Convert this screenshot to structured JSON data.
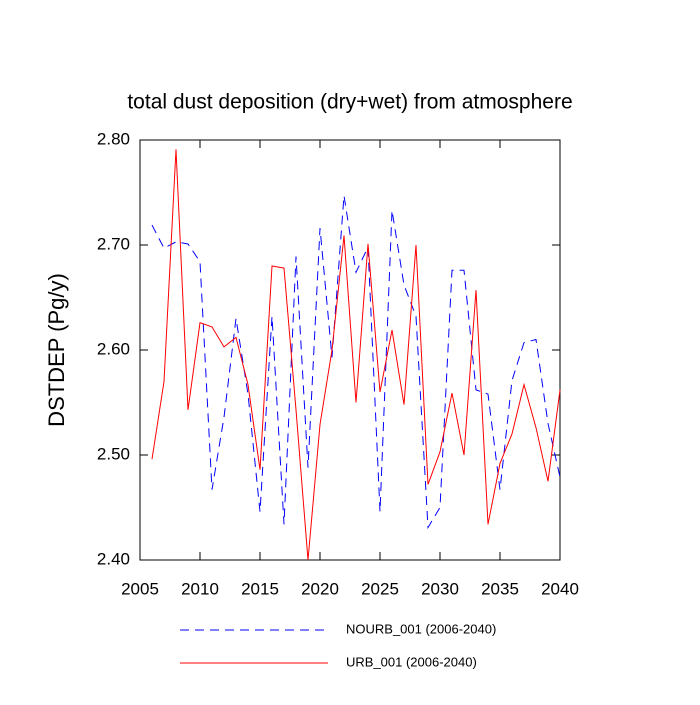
{
  "chart_data": {
    "type": "line",
    "title": "total dust deposition (dry+wet) from atmosphere",
    "y_label": "DSTDEP  (Pg/y)",
    "x": [
      2006,
      2007,
      2008,
      2009,
      2010,
      2011,
      2012,
      2013,
      2014,
      2015,
      2016,
      2017,
      2018,
      2019,
      2020,
      2021,
      2022,
      2023,
      2024,
      2025,
      2026,
      2027,
      2028,
      2029,
      2030,
      2031,
      2032,
      2033,
      2034,
      2035,
      2036,
      2037,
      2038,
      2039,
      2040
    ],
    "series": [
      {
        "name": "NOURB_001 (2006-2040)",
        "color": "#0000ff",
        "dashed": true,
        "values": [
          2.719,
          2.697,
          2.703,
          2.701,
          2.684,
          2.467,
          2.536,
          2.63,
          2.558,
          2.446,
          2.632,
          2.434,
          2.689,
          2.488,
          2.716,
          2.593,
          2.747,
          2.674,
          2.698,
          2.446,
          2.733,
          2.662,
          2.632,
          2.431,
          2.45,
          2.676,
          2.676,
          2.562,
          2.558,
          2.467,
          2.571,
          2.607,
          2.61,
          2.53,
          2.479
        ]
      },
      {
        "name": "URB_001 (2006-2040)",
        "color": "#ff0000",
        "dashed": false,
        "values": [
          2.496,
          2.57,
          2.791,
          2.543,
          2.626,
          2.622,
          2.603,
          2.612,
          2.567,
          2.486,
          2.68,
          2.678,
          2.543,
          2.4,
          2.529,
          2.6,
          2.709,
          2.55,
          2.701,
          2.56,
          2.619,
          2.548,
          2.7,
          2.472,
          2.503,
          2.559,
          2.5,
          2.657,
          2.434,
          2.492,
          2.52,
          2.567,
          2.526,
          2.475,
          2.562
        ]
      }
    ],
    "xlim": [
      2005,
      2040
    ],
    "xticks": [
      2005,
      2010,
      2015,
      2020,
      2025,
      2030,
      2035,
      2040
    ],
    "ylim": [
      2.4,
      2.8
    ],
    "yticks": [
      {
        "value": 2.4,
        "label": "2.40"
      },
      {
        "value": 2.5,
        "label": "2.50"
      },
      {
        "value": 2.6,
        "label": "2.60"
      },
      {
        "value": 2.7,
        "label": "2.70"
      },
      {
        "value": 2.8,
        "label": "2.80"
      }
    ]
  }
}
